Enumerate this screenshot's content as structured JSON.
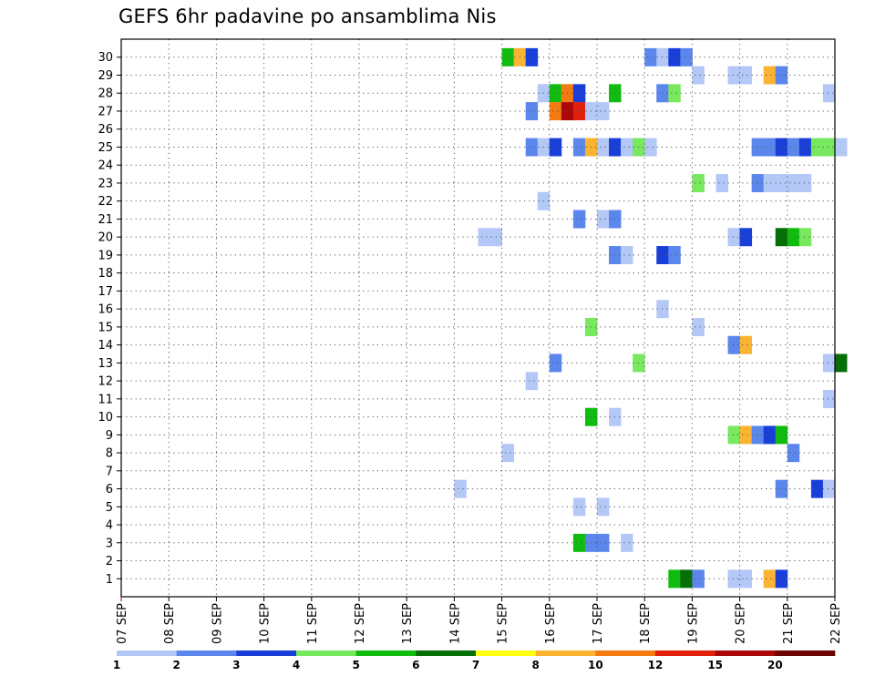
{
  "chart_data": {
    "type": "heatmap",
    "title": "GEFS 6hr padavine po ansamblima Nis",
    "xlabel": "",
    "ylabel": "",
    "x_tick_labels": [
      "07 SEP",
      "08 SEP",
      "09 SEP",
      "10 SEP",
      "11 SEP",
      "12 SEP",
      "13 SEP",
      "14 SEP",
      "15 SEP",
      "16 SEP",
      "17 SEP",
      "18 SEP",
      "19 SEP",
      "20 SEP",
      "21 SEP",
      "22 SEP"
    ],
    "y_tick_labels": [
      "1",
      "2",
      "3",
      "4",
      "5",
      "6",
      "7",
      "8",
      "9",
      "10",
      "11",
      "12",
      "13",
      "14",
      "15",
      "16",
      "17",
      "18",
      "19",
      "20",
      "21",
      "22",
      "23",
      "24",
      "25",
      "26",
      "27",
      "28",
      "29",
      "30"
    ],
    "x_step_hours": 6,
    "grid": true,
    "colorbar": {
      "labels": [
        "1",
        "2",
        "3",
        "4",
        "5",
        "6",
        "7",
        "8",
        "10",
        "12",
        "15",
        "20"
      ],
      "colors": [
        "#b4c8f8",
        "#5b87ec",
        "#1a3fd8",
        "#78e85e",
        "#10bc10",
        "#066e06",
        "#ffff10",
        "#fbb432",
        "#f47a12",
        "#e0200c",
        "#a80808",
        "#6c0404"
      ]
    },
    "cells": [
      {
        "member": 30,
        "t": [
          [
            32,
            5
          ],
          [
            33,
            8
          ],
          [
            34,
            3
          ],
          [
            44,
            2
          ],
          [
            45,
            1
          ],
          [
            46,
            3
          ],
          [
            47,
            2
          ]
        ]
      },
      {
        "member": 29,
        "t": [
          [
            48,
            1
          ],
          [
            51,
            1
          ],
          [
            52,
            1
          ],
          [
            54,
            8
          ],
          [
            55,
            2
          ]
        ]
      },
      {
        "member": 28,
        "t": [
          [
            35,
            1
          ],
          [
            36,
            5
          ],
          [
            37,
            10
          ],
          [
            38,
            3
          ],
          [
            41,
            5
          ],
          [
            45,
            2
          ],
          [
            46,
            4
          ],
          [
            59,
            1
          ]
        ]
      },
      {
        "member": 27,
        "t": [
          [
            34,
            2
          ],
          [
            36,
            10
          ],
          [
            37,
            15
          ],
          [
            38,
            12
          ],
          [
            39,
            1
          ],
          [
            40,
            1
          ]
        ]
      },
      {
        "member": 25,
        "t": [
          [
            34,
            2
          ],
          [
            35,
            1
          ],
          [
            36,
            3
          ],
          [
            38,
            2
          ],
          [
            39,
            8
          ],
          [
            40,
            1
          ],
          [
            41,
            3
          ],
          [
            42,
            1
          ],
          [
            43,
            4
          ],
          [
            44,
            1
          ],
          [
            53,
            2
          ],
          [
            54,
            2
          ],
          [
            55,
            3
          ],
          [
            56,
            2
          ],
          [
            57,
            3
          ],
          [
            58,
            4
          ],
          [
            59,
            4
          ],
          [
            60,
            1
          ]
        ]
      },
      {
        "member": 23,
        "t": [
          [
            48,
            4
          ],
          [
            50,
            1
          ],
          [
            53,
            2
          ],
          [
            54,
            1
          ],
          [
            55,
            1
          ],
          [
            56,
            1
          ],
          [
            57,
            1
          ]
        ]
      },
      {
        "member": 22,
        "t": [
          [
            35,
            1
          ]
        ]
      },
      {
        "member": 21,
        "t": [
          [
            38,
            2
          ],
          [
            40,
            1
          ],
          [
            41,
            2
          ]
        ]
      },
      {
        "member": 20,
        "t": [
          [
            30,
            1
          ],
          [
            31,
            1
          ],
          [
            51,
            1
          ],
          [
            52,
            3
          ],
          [
            55,
            6
          ],
          [
            56,
            5
          ],
          [
            57,
            4
          ]
        ]
      },
      {
        "member": 19,
        "t": [
          [
            41,
            2
          ],
          [
            42,
            1
          ],
          [
            45,
            3
          ],
          [
            46,
            2
          ]
        ]
      },
      {
        "member": 16,
        "t": [
          [
            45,
            1
          ]
        ]
      },
      {
        "member": 15,
        "t": [
          [
            39,
            4
          ],
          [
            48,
            1
          ]
        ]
      },
      {
        "member": 14,
        "t": [
          [
            51,
            2
          ],
          [
            52,
            8
          ]
        ]
      },
      {
        "member": 13,
        "t": [
          [
            36,
            2
          ],
          [
            43,
            4
          ],
          [
            59,
            1
          ],
          [
            60,
            6
          ]
        ]
      },
      {
        "member": 12,
        "t": [
          [
            34,
            1
          ]
        ]
      },
      {
        "member": 11,
        "t": [
          [
            59,
            1
          ]
        ]
      },
      {
        "member": 10,
        "t": [
          [
            39,
            5
          ],
          [
            41,
            1
          ]
        ]
      },
      {
        "member": 9,
        "t": [
          [
            51,
            4
          ],
          [
            52,
            8
          ],
          [
            53,
            2
          ],
          [
            54,
            3
          ],
          [
            55,
            5
          ]
        ]
      },
      {
        "member": 8,
        "t": [
          [
            32,
            1
          ],
          [
            56,
            2
          ]
        ]
      },
      {
        "member": 6,
        "t": [
          [
            28,
            1
          ],
          [
            55,
            2
          ],
          [
            58,
            3
          ],
          [
            59,
            1
          ]
        ]
      },
      {
        "member": 5,
        "t": [
          [
            38,
            1
          ],
          [
            40,
            1
          ]
        ]
      },
      {
        "member": 3,
        "t": [
          [
            38,
            5
          ],
          [
            39,
            2
          ],
          [
            40,
            2
          ],
          [
            42,
            1
          ]
        ]
      },
      {
        "member": 1,
        "t": [
          [
            46,
            5
          ],
          [
            47,
            6
          ],
          [
            48,
            2
          ],
          [
            51,
            1
          ],
          [
            52,
            1
          ],
          [
            54,
            8
          ],
          [
            55,
            3
          ]
        ]
      }
    ]
  }
}
